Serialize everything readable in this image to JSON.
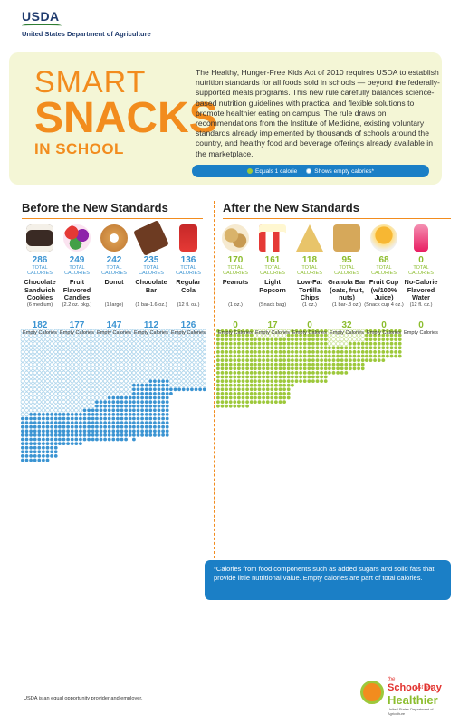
{
  "header": {
    "logo_text": "USDA",
    "department": "United States Department of Agriculture"
  },
  "brand": {
    "line1": "SMART",
    "line2": "SNACKS",
    "line3": "IN SCHOOL"
  },
  "intro": "The Healthy, Hunger-Free Kids Act of 2010 requires USDA to establish nutrition standards for all foods sold in schools — beyond the federally-supported meals programs. This new rule carefully balances science-based nutrition guidelines with practical and flexible solutions to promote healthier eating on campus. The rule draws on recommendations from the Institute of Medicine, existing voluntary standards already implemented by thousands of schools around the country, and healthy food and beverage offerings already available in the marketplace.",
  "legend": {
    "calorie": "Equals 1 calorie",
    "empty": "Shows empty calories*"
  },
  "sections": {
    "before": "Before the New Standards",
    "after": "After the New Standards"
  },
  "labels": {
    "total_calories": "TOTAL CALORIES",
    "empty_calories": "Empty Calories"
  },
  "colors": {
    "blue": "#3b94d2",
    "green": "#9dc83b",
    "orange": "#f28c1e",
    "panel": "#1b7fc6"
  },
  "before": [
    {
      "total": "286",
      "name": "Chocolate Sandwich Cookies",
      "size": "(6 medium)",
      "empty": "182",
      "icon": "cookies-icon"
    },
    {
      "total": "249",
      "name": "Fruit Flavored Candies",
      "size": "(2.2 oz. pkg.)",
      "empty": "177",
      "icon": "candies-icon"
    },
    {
      "total": "242",
      "name": "Donut",
      "size": "(1 large)",
      "empty": "147",
      "icon": "donut-icon"
    },
    {
      "total": "235",
      "name": "Chocolate Bar",
      "size": "(1 bar-1.6 oz.)",
      "empty": "112",
      "icon": "chocolate-bar-icon"
    },
    {
      "total": "136",
      "name": "Regular Cola",
      "size": "(12 fl. oz.)",
      "empty": "126",
      "icon": "cola-can-icon"
    }
  ],
  "after": [
    {
      "total": "170",
      "name": "Peanuts",
      "size": "(1 oz.)",
      "empty": "0",
      "icon": "peanuts-icon"
    },
    {
      "total": "161",
      "name": "Light Popcorn",
      "size": "(Snack bag)",
      "empty": "17",
      "icon": "popcorn-icon"
    },
    {
      "total": "118",
      "name": "Low-Fat Tortilla Chips",
      "size": "(1 oz.)",
      "empty": "0",
      "icon": "tortilla-chips-icon"
    },
    {
      "total": "95",
      "name": "Granola Bar (oats, fruit, nuts)",
      "size": "(1 bar-.8 oz.)",
      "empty": "32",
      "icon": "granola-bar-icon"
    },
    {
      "total": "68",
      "name": "Fruit Cup (w/100% Juice)",
      "size": "(Snack cup 4 oz.)",
      "empty": "0",
      "icon": "fruit-cup-icon"
    },
    {
      "total": "0",
      "name": "No-Calorie Flavored Water",
      "size": "(12 fl. oz.)",
      "empty": "0",
      "icon": "water-bottle-icon"
    }
  ],
  "note": "*Calories from food components such as added sugars and solid fats that provide little nutritional value. Empty calories are part of total calories.",
  "footer": "USDA is an equal opportunity provider and employer.",
  "badge": {
    "line1": "the",
    "line2": "School Day",
    "line3": "just got",
    "line4": "Healthier",
    "line5": "United States Department of Agriculture"
  }
}
